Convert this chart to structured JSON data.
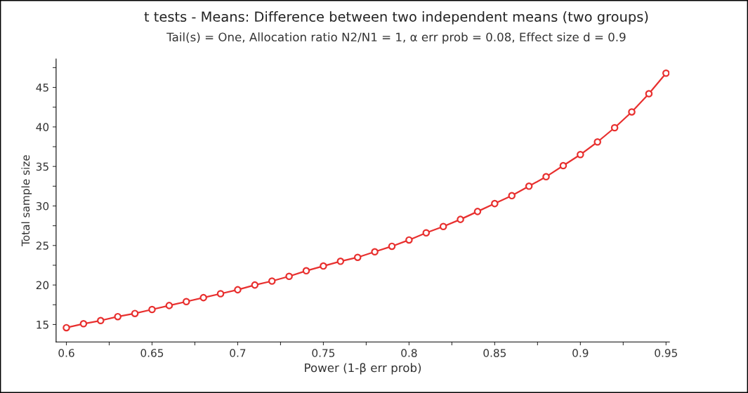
{
  "chart_data": {
    "type": "line",
    "title": "t tests - Means: Difference between two independent means (two groups)",
    "subtitle": "Tail(s) = One, Allocation ratio N2/N1 = 1, α err prob = 0.08, Effect size d = 0.9",
    "xlabel": "Power (1-β err prob)",
    "ylabel": "Total sample size",
    "x": [
      0.6,
      0.61,
      0.62,
      0.63,
      0.64,
      0.65,
      0.66,
      0.67,
      0.68,
      0.69,
      0.7,
      0.71,
      0.72,
      0.73,
      0.74,
      0.75,
      0.76,
      0.77,
      0.78,
      0.79,
      0.8,
      0.81,
      0.82,
      0.83,
      0.84,
      0.85,
      0.86,
      0.87,
      0.88,
      0.89,
      0.9,
      0.91,
      0.92,
      0.93,
      0.94,
      0.95
    ],
    "series": [
      {
        "color": "#e8302f",
        "values": [
          14.6,
          15.1,
          15.5,
          16.0,
          16.4,
          16.9,
          17.4,
          17.9,
          18.4,
          18.9,
          19.4,
          20.0,
          20.5,
          21.1,
          21.8,
          22.4,
          23.0,
          23.5,
          24.2,
          24.9,
          25.7,
          26.6,
          27.4,
          28.3,
          29.3,
          30.3,
          31.3,
          32.5,
          33.7,
          35.1,
          36.5,
          38.1,
          39.9,
          41.9,
          44.2,
          46.8
        ]
      }
    ],
    "xlim": [
      0.594,
      0.952
    ],
    "ylim": [
      12.8,
      48.6
    ],
    "xticks": [
      0.6,
      {
        "value": 0.625,
        "label": null
      },
      0.65,
      {
        "value": 0.675,
        "label": null
      },
      0.7,
      {
        "value": 0.725,
        "label": null
      },
      0.75,
      {
        "value": 0.775,
        "label": null
      },
      0.8,
      {
        "value": 0.825,
        "label": null
      },
      0.85,
      {
        "value": 0.875,
        "label": null
      },
      0.9,
      {
        "value": 0.925,
        "label": null
      },
      0.95
    ],
    "yticks": [
      15,
      {
        "value": 17.5,
        "label": null
      },
      20,
      {
        "value": 22.5,
        "label": null
      },
      25,
      {
        "value": 27.5,
        "label": null
      },
      30,
      {
        "value": 32.5,
        "label": null
      },
      35,
      {
        "value": 37.5,
        "label": null
      },
      40,
      {
        "value": 42.5,
        "label": null
      },
      45,
      {
        "value": 47.5,
        "label": null
      }
    ],
    "grid": false,
    "marker": "circle",
    "line_style": "solid"
  }
}
